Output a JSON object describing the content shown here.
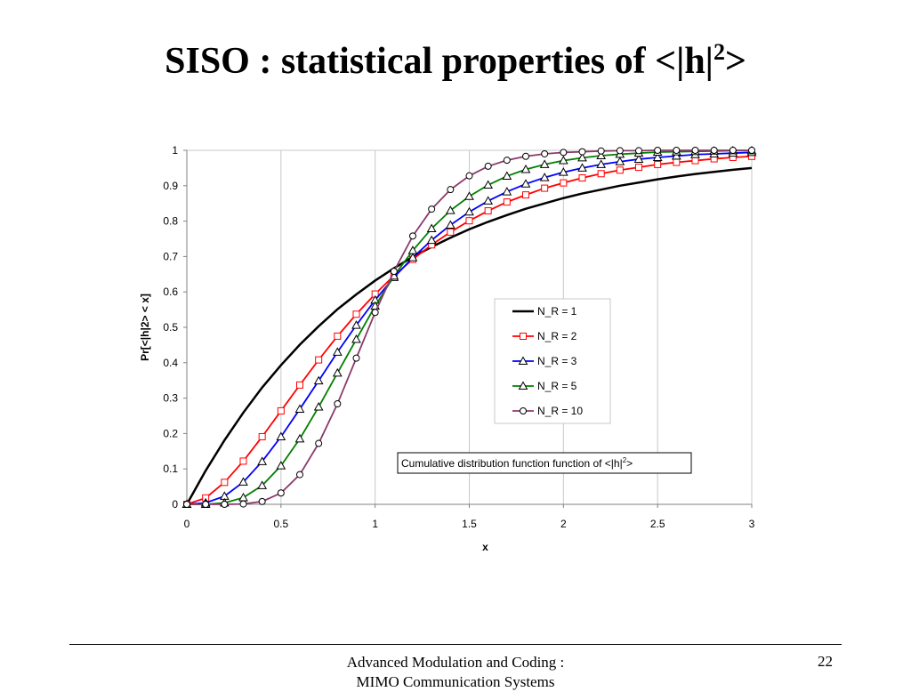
{
  "slide": {
    "title_main": "SISO : statistical properties of <|h|",
    "title_sup": "2",
    "title_end": ">",
    "footer_line1": "Advanced Modulation and Coding :",
    "footer_line2": "MIMO Communication Systems",
    "page_number": "22"
  },
  "chart_data": {
    "type": "line",
    "title": "",
    "xlabel": "x",
    "ylabel": "Pr[<|h|2> < x]",
    "xlim": [
      0,
      3
    ],
    "ylim": [
      0,
      1
    ],
    "x_ticks": [
      "0",
      "0.5",
      "1",
      "1.5",
      "2",
      "2.5",
      "3"
    ],
    "y_ticks": [
      "0",
      "0.1",
      "0.2",
      "0.3",
      "0.4",
      "0.5",
      "0.6",
      "0.7",
      "0.8",
      "0.9",
      "1"
    ],
    "grid": "vertical",
    "legend_position": "center-right",
    "annotation": {
      "text": "Cumulative distribution function function of <|h|",
      "sup": "2",
      "end": ">"
    },
    "x": [
      0,
      0.1,
      0.2,
      0.3,
      0.4,
      0.5,
      0.6,
      0.7,
      0.8,
      0.9,
      1.0,
      1.1,
      1.2,
      1.3,
      1.4,
      1.5,
      1.6,
      1.7,
      1.8,
      1.9,
      2.0,
      2.1,
      2.2,
      2.3,
      2.4,
      2.5,
      2.6,
      2.7,
      2.8,
      2.9,
      3.0
    ],
    "series": [
      {
        "name": "N_R = 1",
        "color": "#000000",
        "marker": "none",
        "values": [
          0,
          0.095,
          0.181,
          0.259,
          0.33,
          0.393,
          0.451,
          0.503,
          0.551,
          0.593,
          0.632,
          0.667,
          0.699,
          0.727,
          0.753,
          0.777,
          0.798,
          0.817,
          0.835,
          0.85,
          0.865,
          0.878,
          0.889,
          0.9,
          0.909,
          0.918,
          0.926,
          0.933,
          0.939,
          0.945,
          0.95
        ]
      },
      {
        "name": "N_R = 2",
        "color": "#ff0000",
        "marker": "square",
        "values": [
          0,
          0.018,
          0.062,
          0.122,
          0.191,
          0.264,
          0.337,
          0.408,
          0.475,
          0.537,
          0.594,
          0.646,
          0.692,
          0.733,
          0.769,
          0.801,
          0.829,
          0.854,
          0.874,
          0.893,
          0.908,
          0.922,
          0.934,
          0.944,
          0.952,
          0.96,
          0.966,
          0.971,
          0.976,
          0.98,
          0.983
        ]
      },
      {
        "name": "N_R = 3",
        "color": "#0000ff",
        "marker": "triangle",
        "values": [
          0,
          0.004,
          0.023,
          0.063,
          0.121,
          0.191,
          0.269,
          0.349,
          0.43,
          0.506,
          0.577,
          0.641,
          0.697,
          0.746,
          0.789,
          0.826,
          0.857,
          0.883,
          0.905,
          0.923,
          0.938,
          0.95,
          0.96,
          0.968,
          0.975,
          0.98,
          0.984,
          0.988,
          0.99,
          0.992,
          0.994
        ]
      },
      {
        "name": "N_R = 5",
        "color": "#008000",
        "marker": "triangle",
        "values": [
          0,
          0.0,
          0.004,
          0.019,
          0.053,
          0.109,
          0.185,
          0.275,
          0.371,
          0.466,
          0.56,
          0.645,
          0.717,
          0.779,
          0.83,
          0.87,
          0.902,
          0.927,
          0.946,
          0.96,
          0.971,
          0.979,
          0.985,
          0.989,
          0.992,
          0.995,
          0.996,
          0.997,
          0.998,
          0.999,
          0.999
        ]
      },
      {
        "name": "N_R = 10",
        "color": "#8b3a6b",
        "marker": "circle",
        "values": [
          0,
          0.0,
          0.0,
          0.001,
          0.008,
          0.032,
          0.084,
          0.172,
          0.284,
          0.413,
          0.542,
          0.658,
          0.758,
          0.834,
          0.889,
          0.928,
          0.955,
          0.972,
          0.983,
          0.99,
          0.994,
          0.996,
          0.998,
          0.999,
          0.999,
          1.0,
          1.0,
          1.0,
          1.0,
          1.0,
          1.0
        ]
      }
    ]
  }
}
